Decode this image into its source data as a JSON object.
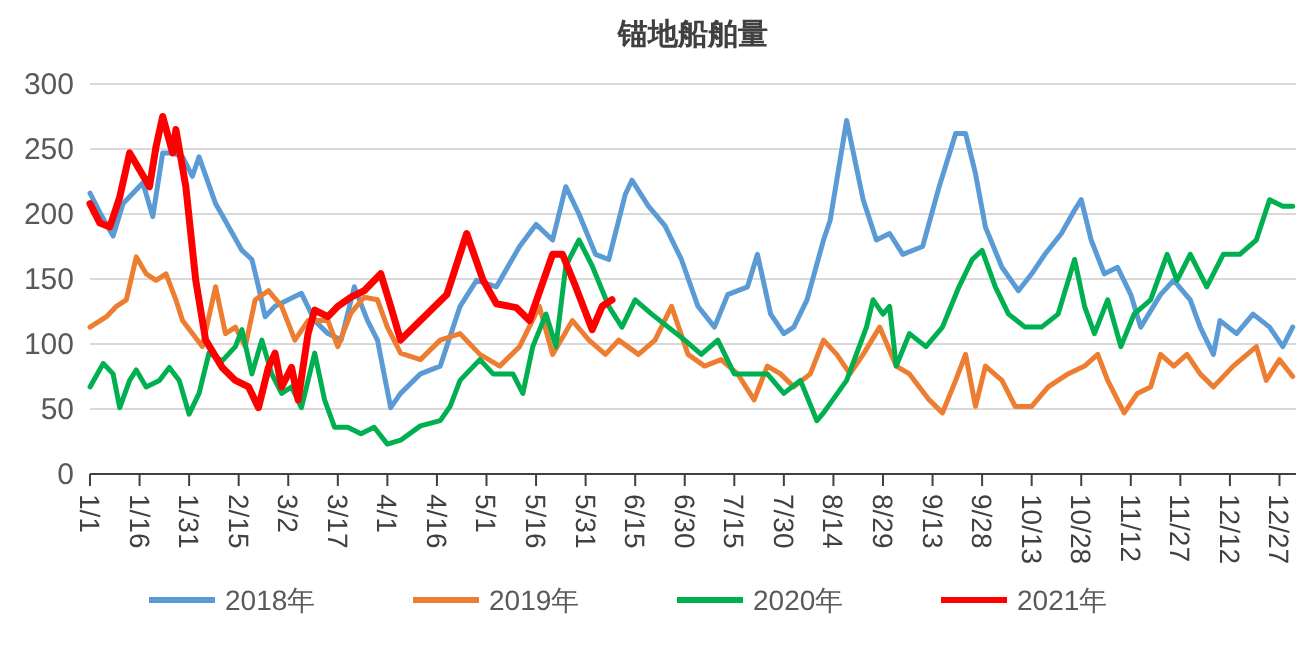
{
  "chart_data": {
    "type": "line",
    "title": "锚地船舶量",
    "xlim": [
      "--01-01",
      "--12-31"
    ],
    "ylim": [
      0,
      300
    ],
    "yticks": [
      0,
      50,
      100,
      150,
      200,
      250,
      300
    ],
    "xticks": [
      {
        "value": "--01-01",
        "label": "1/1"
      },
      {
        "value": "--01-16",
        "label": "1/16"
      },
      {
        "value": "--01-31",
        "label": "1/31"
      },
      {
        "value": "--02-15",
        "label": "2/15"
      },
      {
        "value": "--03-02",
        "label": "3/2"
      },
      {
        "value": "--03-17",
        "label": "3/17"
      },
      {
        "value": "--04-01",
        "label": "4/1"
      },
      {
        "value": "--04-16",
        "label": "4/16"
      },
      {
        "value": "--05-01",
        "label": "5/1"
      },
      {
        "value": "--05-16",
        "label": "5/16"
      },
      {
        "value": "--05-31",
        "label": "5/31"
      },
      {
        "value": "--06-15",
        "label": "6/15"
      },
      {
        "value": "--06-30",
        "label": "6/30"
      },
      {
        "value": "--07-15",
        "label": "7/15"
      },
      {
        "value": "--07-30",
        "label": "7/30"
      },
      {
        "value": "--08-14",
        "label": "8/14"
      },
      {
        "value": "--08-29",
        "label": "8/29"
      },
      {
        "value": "--09-13",
        "label": "9/13"
      },
      {
        "value": "--09-28",
        "label": "9/28"
      },
      {
        "value": "--10-13",
        "label": "10/13"
      },
      {
        "value": "--10-28",
        "label": "10/28"
      },
      {
        "value": "--11-12",
        "label": "11/12"
      },
      {
        "value": "--11-27",
        "label": "11/27"
      },
      {
        "value": "--12-12",
        "label": "12/12"
      },
      {
        "value": "--12-27",
        "label": "12/27"
      }
    ],
    "grid": "y",
    "legend": "bottom",
    "marker": "none",
    "line_style": "solid",
    "series": [
      {
        "name": "2018年",
        "color": "#5b9bd5",
        "x": [
          "--01-01",
          "--01-04",
          "--01-08",
          "--01-11",
          "--01-14",
          "--01-17",
          "--01-20",
          "--01-23",
          "--01-26",
          "--01-29",
          "--02-01",
          "--02-03",
          "--02-08",
          "--02-12",
          "--02-16",
          "--02-19",
          "--02-21",
          "--02-23",
          "--02-26",
          "--03-02",
          "--03-06",
          "--03-10",
          "--03-14",
          "--03-18",
          "--03-22",
          "--03-26",
          "--03-29",
          "--04-02",
          "--04-05",
          "--04-11",
          "--04-17",
          "--04-23",
          "--04-28",
          "--05-04",
          "--05-11",
          "--05-16",
          "--05-21",
          "--05-25",
          "--05-29",
          "--06-03",
          "--06-07",
          "--06-12",
          "--06-14",
          "--06-19",
          "--06-24",
          "--06-29",
          "--07-04",
          "--07-09",
          "--07-13",
          "--07-19",
          "--07-22",
          "--07-26",
          "--07-30",
          "--08-02",
          "--08-06",
          "--08-11",
          "--08-13",
          "--08-18",
          "--08-23",
          "--08-27",
          "--08-31",
          "--09-04",
          "--09-10",
          "--09-15",
          "--09-20",
          "--09-23",
          "--09-26",
          "--09-29",
          "--10-04",
          "--10-09",
          "--10-13",
          "--10-17",
          "--10-22",
          "--10-26",
          "--10-28",
          "--10-31",
          "--11-04",
          "--11-08",
          "--11-12",
          "--11-15",
          "--11-21",
          "--11-25",
          "--11-30",
          "--12-03",
          "--12-07",
          "--12-09",
          "--12-14",
          "--12-19",
          "--12-24",
          "--12-28",
          "--12-31"
        ],
        "values": [
          216,
          201,
          183,
          208,
          216,
          224,
          198,
          247,
          247,
          244,
          229,
          244,
          208,
          190,
          172,
          165,
          144,
          121,
          129,
          134,
          139,
          118,
          108,
          103,
          144,
          118,
          103,
          51,
          62,
          77,
          83,
          129,
          149,
          144,
          175,
          192,
          180,
          221,
          200,
          169,
          165,
          215,
          226,
          206,
          191,
          165,
          129,
          113,
          138,
          144,
          169,
          123,
          108,
          113,
          134,
          180,
          195,
          272,
          211,
          180,
          185,
          169,
          175,
          221,
          262,
          262,
          231,
          190,
          159,
          141,
          154,
          169,
          185,
          203,
          211,
          180,
          154,
          159,
          138,
          113,
          138,
          149,
          134,
          113,
          92,
          118,
          108,
          123,
          113,
          98,
          113
        ]
      },
      {
        "name": "2019年",
        "color": "#ed7d31",
        "x": [
          "--01-01",
          "--01-06",
          "--01-09",
          "--01-12",
          "--01-15",
          "--01-18",
          "--01-21",
          "--01-24",
          "--01-27",
          "--01-29",
          "--02-01",
          "--02-04",
          "--02-08",
          "--02-11",
          "--02-14",
          "--02-17",
          "--02-20",
          "--02-24",
          "--02-28",
          "--03-04",
          "--03-08",
          "--03-14",
          "--03-17",
          "--03-21",
          "--03-25",
          "--03-29",
          "--04-01",
          "--04-05",
          "--04-11",
          "--04-17",
          "--04-23",
          "--04-29",
          "--05-05",
          "--05-11",
          "--05-17",
          "--05-21",
          "--05-27",
          "--06-01",
          "--06-06",
          "--06-10",
          "--06-16",
          "--06-21",
          "--06-26",
          "--07-01",
          "--07-06",
          "--07-11",
          "--07-16",
          "--07-21",
          "--07-25",
          "--07-29",
          "--08-02",
          "--08-07",
          "--08-11",
          "--08-15",
          "--08-19",
          "--08-23",
          "--08-28",
          "--09-02",
          "--09-06",
          "--09-12",
          "--09-16",
          "--09-20",
          "--09-23",
          "--09-26",
          "--09-29",
          "--10-04",
          "--10-08",
          "--10-13",
          "--10-18",
          "--10-24",
          "--10-29",
          "--11-02",
          "--11-05",
          "--11-10",
          "--11-14",
          "--11-18",
          "--11-21",
          "--11-25",
          "--11-29",
          "--12-03",
          "--12-07",
          "--12-13",
          "--12-20",
          "--12-23",
          "--12-27",
          "--12-31"
        ],
        "values": [
          113,
          121,
          129,
          134,
          167,
          154,
          149,
          154,
          134,
          118,
          108,
          98,
          144,
          108,
          113,
          98,
          134,
          141,
          129,
          103,
          118,
          118,
          98,
          124,
          136,
          134,
          113,
          93,
          88,
          103,
          108,
          92,
          83,
          98,
          129,
          92,
          118,
          103,
          92,
          103,
          92,
          103,
          129,
          92,
          83,
          88,
          77,
          57,
          83,
          77,
          67,
          77,
          103,
          92,
          77,
          92,
          113,
          83,
          77,
          57,
          47,
          72,
          92,
          52,
          83,
          72,
          52,
          52,
          67,
          77,
          83,
          92,
          72,
          47,
          62,
          67,
          92,
          83,
          92,
          77,
          67,
          83,
          98,
          72,
          88,
          75
        ]
      },
      {
        "name": "2020年",
        "color": "#00b050",
        "x": [
          "--01-01",
          "--01-05",
          "--01-08",
          "--01-10",
          "--01-13",
          "--01-15",
          "--01-18",
          "--01-22",
          "--01-25",
          "--01-28",
          "--01-31",
          "--02-03",
          "--02-06",
          "--02-10",
          "--02-14",
          "--02-16",
          "--02-19",
          "--02-22",
          "--02-25",
          "--02-28",
          "--03-03",
          "--03-06",
          "--03-10",
          "--03-13",
          "--03-16",
          "--03-20",
          "--03-24",
          "--03-28",
          "--04-01",
          "--04-05",
          "--04-11",
          "--04-17",
          "--04-20",
          "--04-23",
          "--04-29",
          "--05-03",
          "--05-09",
          "--05-12",
          "--05-15",
          "--05-19",
          "--05-22",
          "--05-25",
          "--05-29",
          "--06-02",
          "--06-07",
          "--06-11",
          "--06-15",
          "--06-20",
          "--06-25",
          "--06-30",
          "--07-05",
          "--07-10",
          "--07-15",
          "--07-20",
          "--07-25",
          "--07-30",
          "--08-04",
          "--08-09",
          "--08-11",
          "--08-18",
          "--08-24",
          "--08-26",
          "--08-29",
          "--08-31",
          "--09-02",
          "--09-06",
          "--09-11",
          "--09-16",
          "--09-21",
          "--09-25",
          "--09-28",
          "--10-02",
          "--10-06",
          "--10-11",
          "--10-16",
          "--10-21",
          "--10-26",
          "--10-29",
          "--11-01",
          "--11-05",
          "--11-09",
          "--11-13",
          "--11-18",
          "--11-23",
          "--11-26",
          "--11-30",
          "--12-05",
          "--12-10",
          "--12-15",
          "--12-20",
          "--12-24",
          "--12-28",
          "--12-31"
        ],
        "values": [
          67,
          85,
          77,
          51,
          72,
          80,
          67,
          72,
          82,
          72,
          46,
          62,
          93,
          87,
          98,
          111,
          77,
          103,
          77,
          62,
          67,
          51,
          93,
          57,
          36,
          36,
          31,
          36,
          23,
          26,
          37,
          41,
          52,
          72,
          88,
          77,
          77,
          62,
          98,
          123,
          98,
          160,
          180,
          160,
          129,
          113,
          134,
          123,
          113,
          103,
          92,
          103,
          77,
          77,
          77,
          62,
          72,
          41,
          47,
          72,
          113,
          134,
          123,
          129,
          83,
          108,
          98,
          113,
          144,
          165,
          172,
          144,
          123,
          113,
          113,
          123,
          165,
          129,
          108,
          134,
          98,
          123,
          134,
          169,
          149,
          169,
          144,
          169,
          169,
          180,
          211,
          206,
          206
        ]
      },
      {
        "name": "2021年",
        "color": "#ff0000",
        "x": [
          "--01-01",
          "--01-04",
          "--01-07",
          "--01-10",
          "--01-13",
          "--01-16",
          "--01-19",
          "--01-21",
          "--01-23",
          "--01-26",
          "--01-27",
          "--01-30",
          "--02-02",
          "--02-05",
          "--02-10",
          "--02-14",
          "--02-18",
          "--02-21",
          "--02-24",
          "--02-26",
          "--02-28",
          "--03-03",
          "--03-05",
          "--03-08",
          "--03-10",
          "--03-14",
          "--03-17",
          "--03-21",
          "--03-25",
          "--03-30",
          "--04-02",
          "--04-05",
          "--04-13",
          "--04-19",
          "--04-25",
          "--04-30",
          "--05-04",
          "--05-10",
          "--05-14",
          "--05-21",
          "--05-24",
          "--05-28",
          "--06-02",
          "--06-05",
          "--06-08"
        ],
        "values": [
          208,
          193,
          190,
          213,
          247,
          234,
          221,
          252,
          275,
          247,
          265,
          221,
          149,
          103,
          82,
          72,
          67,
          51,
          82,
          93,
          67,
          82,
          57,
          108,
          126,
          121,
          129,
          136,
          141,
          154,
          129,
          103,
          123,
          138,
          185,
          149,
          131,
          128,
          118,
          169,
          169,
          144,
          111,
          129,
          134
        ]
      }
    ]
  }
}
